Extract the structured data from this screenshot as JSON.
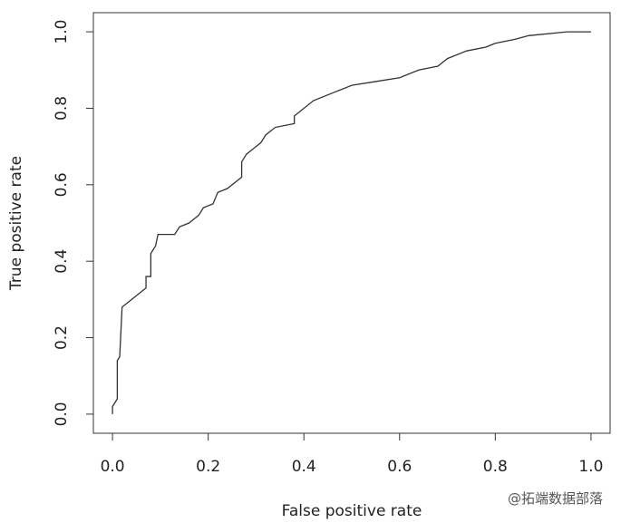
{
  "chart_data": {
    "type": "line",
    "x_label": "False positive rate",
    "y_label": "True positive rate",
    "x": [
      0,
      0,
      0.005,
      0.01,
      0.01,
      0.015,
      0.02,
      0.03,
      0.04,
      0.05,
      0.06,
      0.07,
      0.07,
      0.08,
      0.08,
      0.09,
      0.095,
      0.13,
      0.14,
      0.16,
      0.17,
      0.18,
      0.19,
      0.21,
      0.22,
      0.24,
      0.25,
      0.26,
      0.27,
      0.27,
      0.28,
      0.3,
      0.31,
      0.32,
      0.34,
      0.38,
      0.38,
      0.4,
      0.42,
      0.46,
      0.48,
      0.5,
      0.55,
      0.6,
      0.64,
      0.68,
      0.7,
      0.74,
      0.78,
      0.8,
      0.84,
      0.87,
      0.95,
      1.0
    ],
    "series": [
      {
        "color": "#333333",
        "values": [
          0,
          0.02,
          0.03,
          0.04,
          0.14,
          0.15,
          0.28,
          0.29,
          0.3,
          0.31,
          0.32,
          0.33,
          0.36,
          0.36,
          0.42,
          0.44,
          0.47,
          0.47,
          0.49,
          0.5,
          0.51,
          0.52,
          0.54,
          0.55,
          0.58,
          0.59,
          0.6,
          0.61,
          0.62,
          0.66,
          0.68,
          0.7,
          0.71,
          0.73,
          0.75,
          0.76,
          0.78,
          0.8,
          0.82,
          0.84,
          0.85,
          0.86,
          0.87,
          0.88,
          0.9,
          0.91,
          0.93,
          0.95,
          0.96,
          0.97,
          0.98,
          0.99,
          1.0,
          1.0
        ]
      }
    ],
    "xlim": [
      -0.04,
      1.04
    ],
    "ylim": [
      -0.05,
      1.05
    ],
    "xticks": [
      {
        "value": 0,
        "label": "0.0"
      },
      0.2,
      0.4,
      0.6,
      0.8,
      {
        "value": 1,
        "label": "1.0"
      }
    ],
    "yticks": [
      {
        "value": 0,
        "label": "0.0"
      },
      0.2,
      0.4,
      0.6,
      0.8,
      {
        "value": 1,
        "label": "1.0"
      }
    ],
    "watermark": "@拓端数据部落"
  }
}
